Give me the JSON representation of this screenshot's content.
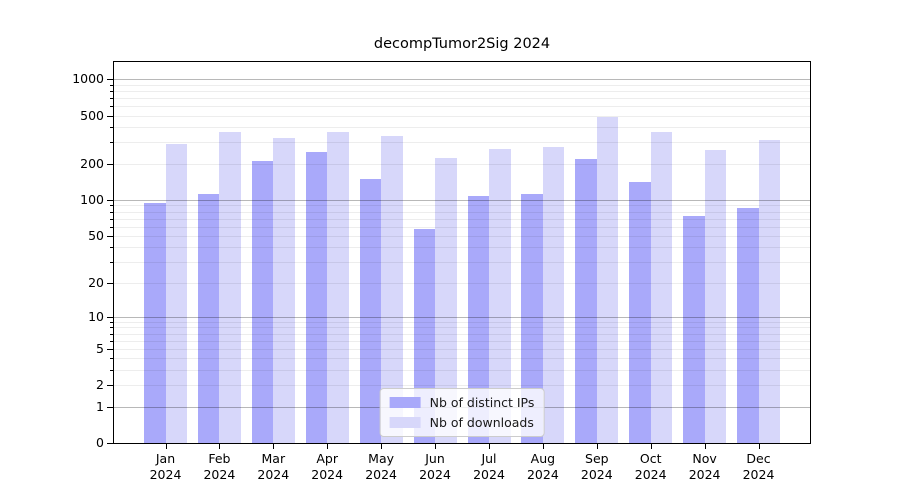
{
  "figure": {
    "title": "decompTumor2Sig 2024"
  },
  "chart_data": {
    "type": "bar",
    "title": "decompTumor2Sig 2024",
    "scale": "log1p",
    "grid": "horizontal",
    "legend_position": "lower center",
    "category_year": "2024",
    "categories": [
      "Jan",
      "Feb",
      "Mar",
      "Apr",
      "May",
      "Jun",
      "Jul",
      "Aug",
      "Sep",
      "Oct",
      "Nov",
      "Dec"
    ],
    "series": [
      {
        "name": "Nb of distinct IPs",
        "color": "#a9a9fa",
        "values": [
          94,
          112,
          210,
          250,
          150,
          57,
          107,
          113,
          220,
          142,
          73,
          85
        ]
      },
      {
        "name": "Nb of downloads",
        "color": "#d7d7fa",
        "values": [
          294,
          363,
          326,
          363,
          341,
          221,
          264,
          275,
          486,
          365,
          261,
          316
        ]
      }
    ],
    "y_ticks_labeled": [
      0,
      1,
      2,
      5,
      10,
      20,
      50,
      100,
      200,
      500,
      1000
    ],
    "y_ticks_minor": [
      3,
      4,
      6,
      7,
      8,
      9,
      30,
      40,
      60,
      70,
      80,
      90,
      300,
      400,
      600,
      700,
      800,
      900
    ],
    "y_gridline_major_at": [
      1,
      10,
      100,
      1000
    ],
    "ylim": [
      0,
      1384
    ],
    "xlabel": "",
    "ylabel": ""
  },
  "colors": {
    "distinct_ips": "#a9a9fa",
    "downloads": "#d7d7fa",
    "spine": "#000000",
    "legend_border": "#cccccc"
  }
}
